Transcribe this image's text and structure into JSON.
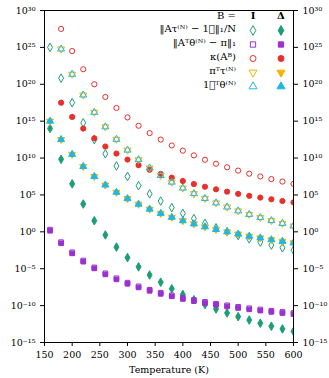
{
  "chart_data": {
    "type": "scatter",
    "x_label": "Temperature (K)",
    "log": "y",
    "grid": false,
    "legend": "top-right",
    "legend_title": "B =",
    "groups": [
      "I",
      "Δ"
    ],
    "xlim": [
      150,
      600
    ],
    "xticks": [
      150,
      200,
      250,
      300,
      350,
      400,
      450,
      500,
      550,
      600
    ],
    "ylim": [
      1e-15,
      1e+30
    ],
    "yticks": [
      {
        "value": 1e-15,
        "label": "10⁻¹⁵"
      },
      {
        "value": 1e-10,
        "label": "10⁻¹⁰"
      },
      {
        "value": 1e-05,
        "label": "10⁻⁵"
      },
      {
        "value": 1,
        "label": "10⁰"
      },
      {
        "value": 100000.0,
        "label": "10⁵"
      },
      {
        "value": 10000000000.0,
        "label": "10¹⁰"
      },
      {
        "value": 1000000000000000.0,
        "label": "10¹⁵"
      },
      {
        "value": 1e+20,
        "label": "10²⁰"
      },
      {
        "value": 1e+25,
        "label": "10²⁵"
      },
      {
        "value": 1e+30,
        "label": "10³⁰"
      }
    ],
    "x": [
      160,
      180,
      200,
      220,
      240,
      260,
      280,
      300,
      320,
      340,
      360,
      380,
      400,
      420,
      440,
      460,
      480,
      500,
      520,
      540,
      560,
      580,
      600
    ],
    "series": [
      {
        "name": "‖Aτ⁽ᴺ⁾ − 1⃗‖₁/N",
        "group": "I",
        "color": "#1b9e77",
        "marker": "diamond",
        "values": [
          1e+25,
          6.8e+20,
          3.2e+17,
          590000000000000.0,
          3200000000000.0,
          38000000000.0,
          850000000.0,
          32000000.0,
          1800000.0,
          140000.0,
          15000.0,
          1900.0,
          316,
          62,
          14,
          3.5,
          1,
          0.32,
          0.11,
          0.041,
          0.016,
          0.0069,
          0.0032
        ]
      },
      {
        "name": "‖Aτ⁽ᴺ⁾ − 1⃗‖₁/N",
        "group": "Δ",
        "color": "#1b9e77",
        "marker": "diamond",
        "values": [
          100000000000000.0,
          6800000000.0,
          3200000.0,
          5900.0,
          32,
          0.38,
          0.0085,
          0.00032,
          1.8e-05,
          1.4e-06,
          1.5e-07,
          1.9e-08,
          3.2e-09,
          6.2e-10,
          1.4e-10,
          3.5e-11,
          1e-11,
          3.2e-12,
          1.1e-12,
          4.1e-13,
          1.6e-13,
          6.9e-14,
          3.2e-14
        ]
      },
      {
        "name": "‖Aᵀθ⁽ᴺ⁾ − π‖₁",
        "group": "I",
        "color": "#9b2fd0",
        "marker": "square",
        "values": [
          2,
          0.04,
          0.0017,
          0.00013,
          1.5e-05,
          2.4e-06,
          5.1e-07,
          1.3e-07,
          4.1e-08,
          1.4e-08,
          5.6e-09,
          2.5e-09,
          1.1e-09,
          5.9e-10,
          3.2e-10,
          1.8e-10,
          1.1e-10,
          6.8e-11,
          4.4e-11,
          3e-11,
          2e-11,
          1.4e-11,
          1e-11
        ]
      },
      {
        "name": "‖Aᵀθ⁽ᴺ⁾ − π‖₁",
        "group": "Δ",
        "color": "#9b2fd0",
        "marker": "square",
        "values": [
          1.4,
          0.028,
          0.0012,
          9e-05,
          1.1e-05,
          1.7e-06,
          3.6e-07,
          9e-08,
          2.9e-08,
          1e-08,
          3.9e-09,
          1.8e-09,
          8e-10,
          4.1e-10,
          2.2e-10,
          1.3e-10,
          7.7e-11,
          4.8e-11,
          3.1e-11,
          2.1e-11,
          1.4e-11,
          9.8e-12,
          7e-12
        ]
      },
      {
        "name": "κ(Aᴮ)",
        "group": "I",
        "color": "#e8302a",
        "marker": "circle",
        "values": [
          null,
          3.2e+27,
          3.2e+24,
          1.1e+22,
          1e+20,
          1.9e+18,
          6.2e+16,
          3200000000000000.0,
          240000000000000.0,
          24000000000000.0,
          3200000000000.0,
          510000000000.0,
          100000000000.0,
          23000000000.0,
          5900000000.0,
          1700000000.0,
          560000000.0,
          200000000.0,
          76000000.0,
          32000000.0,
          14000000.0,
          6500000.0,
          3200000.0
        ]
      },
      {
        "name": "κ(Aᴮ)",
        "group": "Δ",
        "color": "#e8302a",
        "marker": "circle",
        "values": [
          null,
          3.2e+17,
          3800000000000000.0,
          100000000000000.0,
          4800000000000.0,
          370000000000.0,
          41000000000.0,
          6200000000.0,
          1100000000.0,
          260000000.0,
          72000000.0,
          22000000.0,
          7800000.0,
          3000000.0,
          1300000.0,
          580000.0,
          280000.0,
          140000.0,
          76000.0,
          44000.0,
          26000.0,
          15000.0,
          9800.0
        ]
      },
      {
        "name": "πᵀτ⁽ᴺ⁾",
        "group": "I",
        "color": "#f2b400",
        "marker": "triangle-down",
        "values": [
          null,
          6e+24,
          2.3e+21,
          3.5e+18,
          1.6e+16,
          170000000000000.0,
          3500000000000.0,
          120000000000.0,
          6000000000.0,
          450000000.0,
          44000000.0,
          5500000.0,
          850000.0,
          150000.0,
          34000.0,
          8300.0,
          2300.0,
          690,
          230,
          85,
          33,
          14,
          6.2
        ]
      },
      {
        "name": "πᵀτ⁽ᴺ⁾",
        "group": "Δ",
        "color": "#f2b400",
        "marker": "triangle-down",
        "values": [
          1000000000000000.0,
          3200000000000.0,
          32000000000.0,
          720000000.0,
          32000000.0,
          2200000.0,
          230000.0,
          32000.0,
          5600.0,
          1200.0,
          316,
          93,
          32,
          12,
          4.8,
          2.1,
          1,
          0.5,
          0.26,
          0.15,
          0.085,
          0.051,
          0.032
        ]
      },
      {
        "name": "1⃗ᵀθ⁽ᴺ⁾",
        "group": "I",
        "color": "#1fb8e0",
        "marker": "triangle-up",
        "values": [
          null,
          6e+24,
          2.3e+21,
          3.5e+18,
          1.6e+16,
          170000000000000.0,
          3500000000000.0,
          120000000000.0,
          6000000000.0,
          450000000.0,
          44000000.0,
          5500000.0,
          850000.0,
          150000.0,
          34000.0,
          8300.0,
          2300.0,
          690,
          230,
          85,
          33,
          14,
          6.2
        ]
      },
      {
        "name": "1⃗ᵀθ⁽ᴺ⁾",
        "group": "Δ",
        "color": "#1fb8e0",
        "marker": "triangle-up",
        "values": [
          1000000000000000.0,
          3200000000000.0,
          32000000000.0,
          720000000.0,
          32000000.0,
          2200000.0,
          230000.0,
          32000.0,
          5600.0,
          1200.0,
          316,
          93,
          32,
          12,
          4.8,
          2.1,
          1,
          0.5,
          0.26,
          0.15,
          0.085,
          0.051,
          0.032
        ]
      }
    ]
  }
}
